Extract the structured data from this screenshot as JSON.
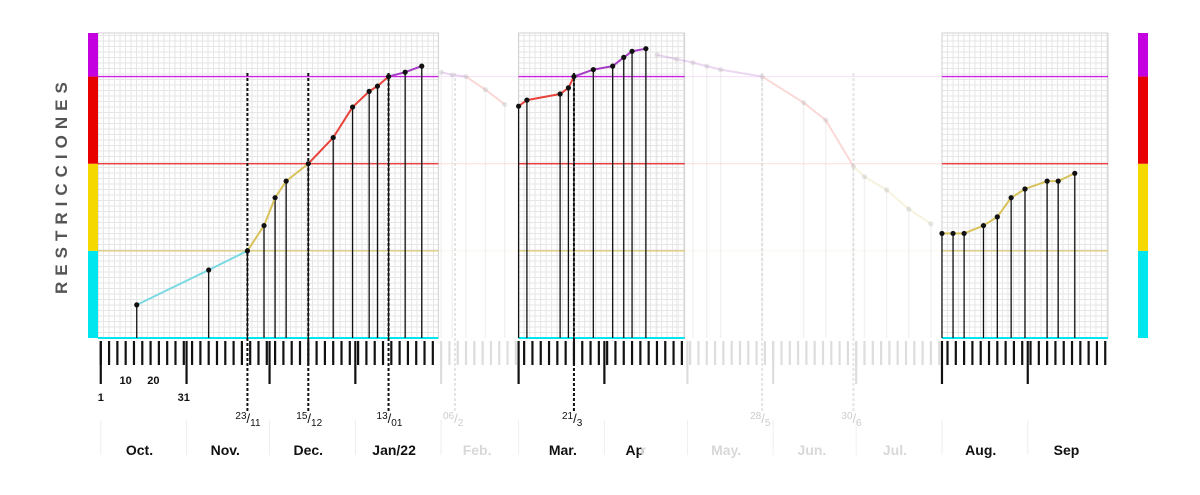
{
  "chart_data": {
    "type": "line",
    "ylabel": "RESTRICCIONES",
    "colors": {
      "cyan": "#00e6ef",
      "yellow": "#f5d800",
      "red": "#e80000",
      "purple": "#c400e0",
      "line_cyan": "#7ad9e2",
      "line_yellow": "#d8c25c",
      "line_red": "#e8433a",
      "line_purple": "#a43cc4",
      "grid": "#e6e6e6"
    },
    "levels": [
      {
        "name": "cyan",
        "from": 0,
        "to": 1
      },
      {
        "name": "yellow",
        "from": 1,
        "to": 2
      },
      {
        "name": "red",
        "from": 2,
        "to": 3
      },
      {
        "name": "purple",
        "from": 3,
        "to": 3.5
      }
    ],
    "ylim": [
      0,
      3.5
    ],
    "xlim": [
      "2021-09-30",
      "2022-09-30"
    ],
    "visible_ranges": [
      [
        "2021-09-30",
        "2022-01-31"
      ],
      [
        "2022-03-01",
        "2022-04-30"
      ],
      [
        "2022-08-01",
        "2022-09-30"
      ]
    ],
    "months": [
      {
        "label": "Oct.",
        "date": "2021-10-15",
        "faded": false
      },
      {
        "label": "Nov.",
        "date": "2021-11-15",
        "faded": false
      },
      {
        "label": "Dec.",
        "date": "2021-12-15",
        "faded": false
      },
      {
        "label": "Jan/22",
        "date": "2022-01-15",
        "faded": false
      },
      {
        "label": "Feb.",
        "date": "2022-02-14",
        "faded": true
      },
      {
        "label": "Mar.",
        "date": "2022-03-17",
        "faded": false
      },
      {
        "label": "Ap",
        "date": "2022-04-12",
        "faded": false
      },
      {
        "label": "r",
        "date": "2022-04-15",
        "faded": true
      },
      {
        "label": "May.",
        "date": "2022-05-15",
        "faded": true
      },
      {
        "label": "Jun.",
        "date": "2022-06-15",
        "faded": true
      },
      {
        "label": "Jul.",
        "date": "2022-07-15",
        "faded": true
      },
      {
        "label": "Aug.",
        "date": "2022-08-15",
        "faded": false
      },
      {
        "label": "Sep",
        "date": "2022-09-15",
        "faded": false
      }
    ],
    "day_labels": [
      {
        "label": "1",
        "date": "2021-10-01"
      },
      {
        "label": "10",
        "date": "2021-10-10"
      },
      {
        "label": "20",
        "date": "2021-10-20"
      },
      {
        "label": "31",
        "date": "2021-10-31"
      }
    ],
    "markers": [
      {
        "day": "23",
        "month": "11",
        "date": "2021-11-23",
        "faded": false
      },
      {
        "day": "15",
        "month": "12",
        "date": "2021-12-15",
        "faded": false
      },
      {
        "day": "13",
        "month": "01",
        "date": "2022-01-13",
        "faded": false
      },
      {
        "day": "06",
        "month": "2",
        "date": "2022-02-06",
        "faded": true
      },
      {
        "day": "21",
        "month": "3",
        "date": "2022-03-21",
        "faded": false
      },
      {
        "day": "28",
        "month": "5",
        "date": "2022-05-28",
        "faded": true
      },
      {
        "day": "30",
        "month": "6",
        "date": "2022-06-30",
        "faded": true
      }
    ],
    "series": [
      {
        "segment": "a",
        "points": [
          {
            "x": "2021-10-14",
            "y": 0.38
          },
          {
            "x": "2021-11-09",
            "y": 0.78
          },
          {
            "x": "2021-11-23",
            "y": 1.0
          },
          {
            "x": "2021-11-29",
            "y": 1.29
          },
          {
            "x": "2021-12-03",
            "y": 1.61
          },
          {
            "x": "2021-12-07",
            "y": 1.8
          },
          {
            "x": "2021-12-15",
            "y": 2.0
          },
          {
            "x": "2021-12-24",
            "y": 2.3
          },
          {
            "x": "2021-12-31",
            "y": 2.65
          },
          {
            "x": "2022-01-06",
            "y": 2.83
          },
          {
            "x": "2022-01-09",
            "y": 2.89
          },
          {
            "x": "2022-01-13",
            "y": 3.0
          },
          {
            "x": "2022-01-19",
            "y": 3.05
          },
          {
            "x": "2022-01-25",
            "y": 3.12
          }
        ]
      },
      {
        "segment": "b",
        "points": [
          {
            "x": "2022-02-01",
            "y": 3.05
          },
          {
            "x": "2022-02-05",
            "y": 3.02
          },
          {
            "x": "2022-02-10",
            "y": 3.0
          },
          {
            "x": "2022-02-17",
            "y": 2.85
          },
          {
            "x": "2022-02-24",
            "y": 2.68
          }
        ],
        "faded": true
      },
      {
        "segment": "c",
        "points": [
          {
            "x": "2022-03-01",
            "y": 2.66
          },
          {
            "x": "2022-03-04",
            "y": 2.73
          },
          {
            "x": "2022-03-16",
            "y": 2.8
          },
          {
            "x": "2022-03-19",
            "y": 2.87
          },
          {
            "x": "2022-03-21",
            "y": 3.0
          },
          {
            "x": "2022-03-28",
            "y": 3.08
          },
          {
            "x": "2022-04-04",
            "y": 3.12
          },
          {
            "x": "2022-04-08",
            "y": 3.22
          },
          {
            "x": "2022-04-11",
            "y": 3.29
          },
          {
            "x": "2022-04-16",
            "y": 3.32
          }
        ]
      },
      {
        "segment": "d",
        "points": [
          {
            "x": "2022-04-20",
            "y": 3.25
          },
          {
            "x": "2022-04-27",
            "y": 3.2
          },
          {
            "x": "2022-05-03",
            "y": 3.16
          },
          {
            "x": "2022-05-08",
            "y": 3.12
          },
          {
            "x": "2022-05-13",
            "y": 3.08
          },
          {
            "x": "2022-05-28",
            "y": 3.0
          },
          {
            "x": "2022-06-12",
            "y": 2.7
          },
          {
            "x": "2022-06-20",
            "y": 2.5
          },
          {
            "x": "2022-06-30",
            "y": 1.97
          },
          {
            "x": "2022-07-04",
            "y": 1.85
          },
          {
            "x": "2022-07-12",
            "y": 1.7
          },
          {
            "x": "2022-07-20",
            "y": 1.48
          },
          {
            "x": "2022-07-28",
            "y": 1.31
          }
        ],
        "faded": true
      },
      {
        "segment": "e",
        "points": [
          {
            "x": "2022-08-01",
            "y": 1.2
          },
          {
            "x": "2022-08-05",
            "y": 1.2
          },
          {
            "x": "2022-08-09",
            "y": 1.2
          },
          {
            "x": "2022-08-16",
            "y": 1.29
          },
          {
            "x": "2022-08-21",
            "y": 1.39
          },
          {
            "x": "2022-08-26",
            "y": 1.61
          },
          {
            "x": "2022-08-31",
            "y": 1.71
          },
          {
            "x": "2022-09-08",
            "y": 1.8
          },
          {
            "x": "2022-09-12",
            "y": 1.8
          },
          {
            "x": "2022-09-18",
            "y": 1.89
          }
        ]
      }
    ],
    "grid": true,
    "legend": "none"
  }
}
